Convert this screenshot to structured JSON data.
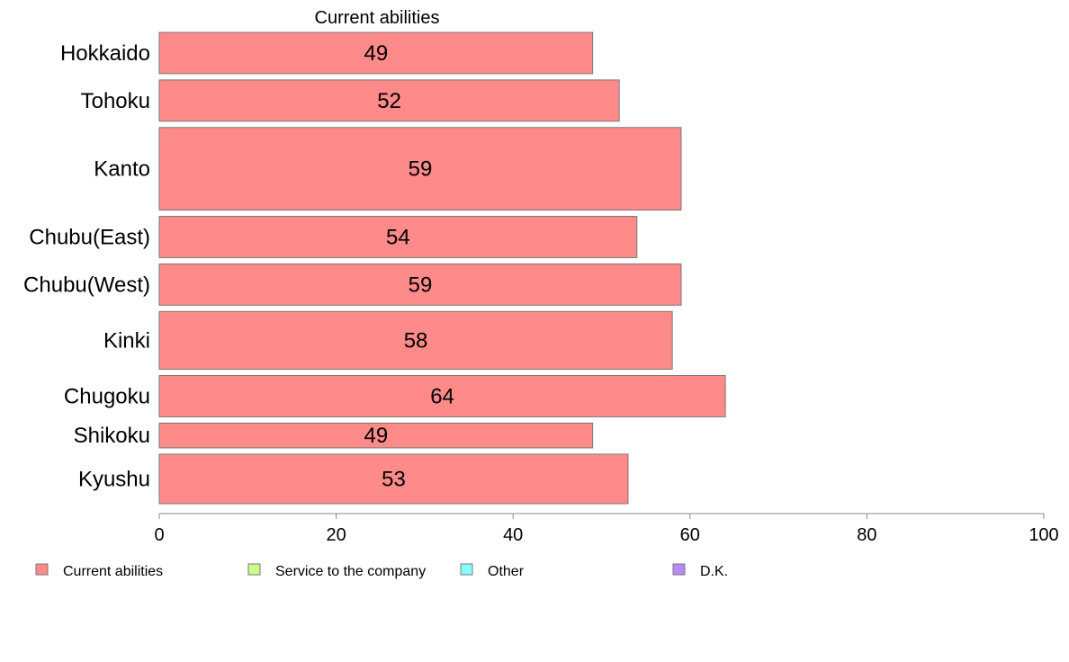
{
  "chart_data": {
    "type": "bar",
    "orientation": "horizontal",
    "stacked": true,
    "series_title": "Current abilities",
    "categories": [
      "Hokkaido",
      "Tohoku",
      "Kanto",
      "Chubu(East)",
      "Chubu(West)",
      "Kinki",
      "Chugoku",
      "Shikoku",
      "Kyushu"
    ],
    "series": [
      {
        "name": "Current abilities",
        "color": "#ff8a8a",
        "values": [
          49,
          52,
          59,
          54,
          59,
          58,
          64,
          49,
          53
        ],
        "labels": [
          "49",
          "52",
          "59",
          "54",
          "59",
          "58",
          "64",
          "49",
          "53"
        ]
      }
    ],
    "bar_weights": [
      1,
      1,
      2,
      1,
      1,
      1.4,
      1,
      0.6,
      1.2
    ],
    "xlim": [
      0,
      100
    ],
    "xticks": [
      0,
      20,
      40,
      60,
      80,
      100
    ],
    "xtick_labels": [
      "0",
      "20",
      "40",
      "60",
      "80",
      "100"
    ],
    "grid": false,
    "legend": {
      "placement": "bottom",
      "items": [
        {
          "label": "Current abilities",
          "color": "#ff8a8a"
        },
        {
          "label": "Service to the company",
          "color": "#ccff88"
        },
        {
          "label": "Other",
          "color": "#88ffff"
        },
        {
          "label": "D.K.",
          "color": "#bb88ff"
        }
      ]
    }
  }
}
